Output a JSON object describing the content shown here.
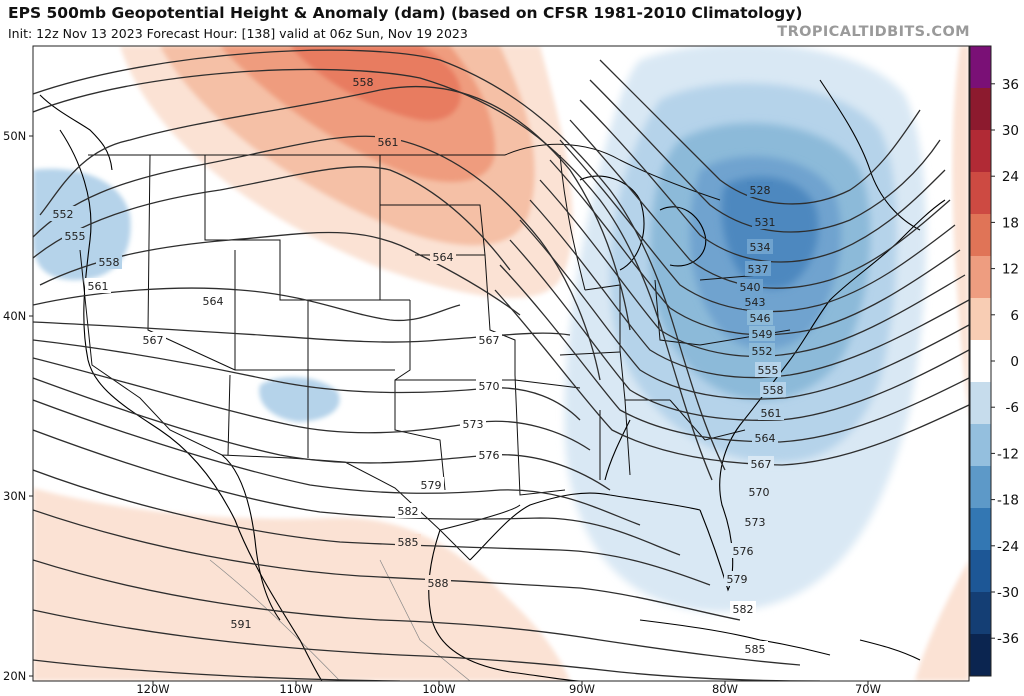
{
  "header": {
    "title": "EPS 500mb Geopotential Height & Anomaly (dam) (based on CFSR 1981-2010 Climatology)",
    "subtitle": "Init: 12z Nov 13 2023   Forecast Hour: [138]   valid at 06z Sun, Nov 19 2023",
    "brand": "TROPICALTIDBITS.COM"
  },
  "map": {
    "lat_labels": [
      "50N",
      "40N",
      "30N",
      "20N"
    ],
    "lon_labels": [
      "120W",
      "110W",
      "100W",
      "90W",
      "80W",
      "70W"
    ],
    "height_contours_dam": [
      "552",
      "555",
      "558",
      "561",
      "564",
      "567",
      "558",
      "561",
      "564",
      "567",
      "570",
      "573",
      "576",
      "579",
      "582",
      "585",
      "588",
      "591",
      "528",
      "531",
      "534",
      "537",
      "540",
      "543",
      "546",
      "549",
      "552",
      "555",
      "558",
      "561",
      "564",
      "567",
      "570",
      "573",
      "576",
      "579",
      "582",
      "585"
    ],
    "colorbar": {
      "units": "dam",
      "ticks": [
        "36",
        "30",
        "24",
        "18",
        "12",
        "6",
        "0",
        "-6",
        "-12",
        "-18",
        "-24",
        "-30",
        "-36"
      ],
      "colors": [
        "#7a1076",
        "#8c1a2e",
        "#b12a35",
        "#cd4a42",
        "#e07457",
        "#ee9d80",
        "#f8cdb4",
        "#ffffff",
        "#c6dcec",
        "#94bfde",
        "#5d99c8",
        "#3377b3",
        "#1d5796",
        "#143e74",
        "#0b2550"
      ]
    },
    "colors": {
      "positive_anomaly": [
        "#fbe2d4",
        "#f5c0a6",
        "#ef9c7e",
        "#e87b60"
      ],
      "negative_anomaly": [
        "#d9e8f4",
        "#b5d3ea",
        "#8cbad9",
        "#6fa3cf",
        "#4d88bf"
      ],
      "contour": "#2e2e2e",
      "coast": "#000000"
    }
  }
}
